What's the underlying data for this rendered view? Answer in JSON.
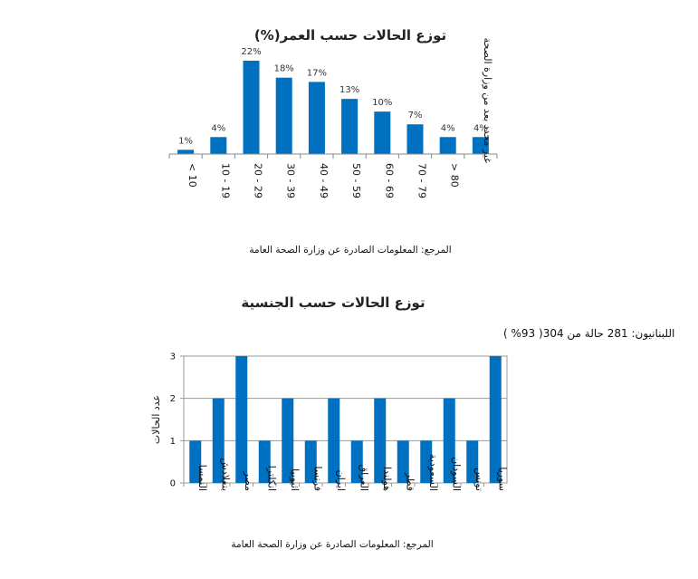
{
  "colors": {
    "bar": "#0070C0",
    "axis": "#888888",
    "grid": "#9a9a9a"
  },
  "chart_data": [
    {
      "type": "bar",
      "title": "توزع الحالات حسب العمر(%)",
      "categories": [
        "< 10",
        "10 - 19",
        "20 - 29",
        "30 - 39",
        "40 - 49",
        "50 - 59",
        "60 - 69",
        "70 - 79",
        "> 80",
        "غير محدد بعد من وزارة الصحة"
      ],
      "values": [
        1,
        4,
        22,
        18,
        17,
        13,
        10,
        7,
        4,
        4
      ],
      "data_labels": [
        "1%",
        "4%",
        "22%",
        "18%",
        "17%",
        "13%",
        "10%",
        "7%",
        "4%",
        "4%"
      ],
      "ylim": [
        0,
        22
      ],
      "grid": false,
      "source": "المرجع: المعلومات الصادرة عن وزارة الصحة العامة"
    },
    {
      "type": "bar",
      "title": "توزع الحالات حسب الجنسية",
      "subtitle": "اللبنانيون: 281 حالة من 304( 93% )",
      "categories": [
        "النمسا",
        "بنغلادش",
        "مصر",
        "انكلترا",
        "اثيوبيا",
        "فرنسا",
        "ايران",
        "العراق",
        "هولندا",
        "قطر",
        "السعودية",
        "السودان",
        "تونس",
        "سوريا"
      ],
      "values": [
        1,
        2,
        3,
        1,
        2,
        1,
        2,
        1,
        2,
        1,
        1,
        2,
        1,
        3
      ],
      "ylabel": "عدد الحالات",
      "yticks": [
        "0",
        "1",
        "2",
        "3"
      ],
      "ylim": [
        0,
        3
      ],
      "grid": true,
      "source": "المرجع: المعلومات الصادرة عن وزارة الصحة العامة"
    }
  ]
}
